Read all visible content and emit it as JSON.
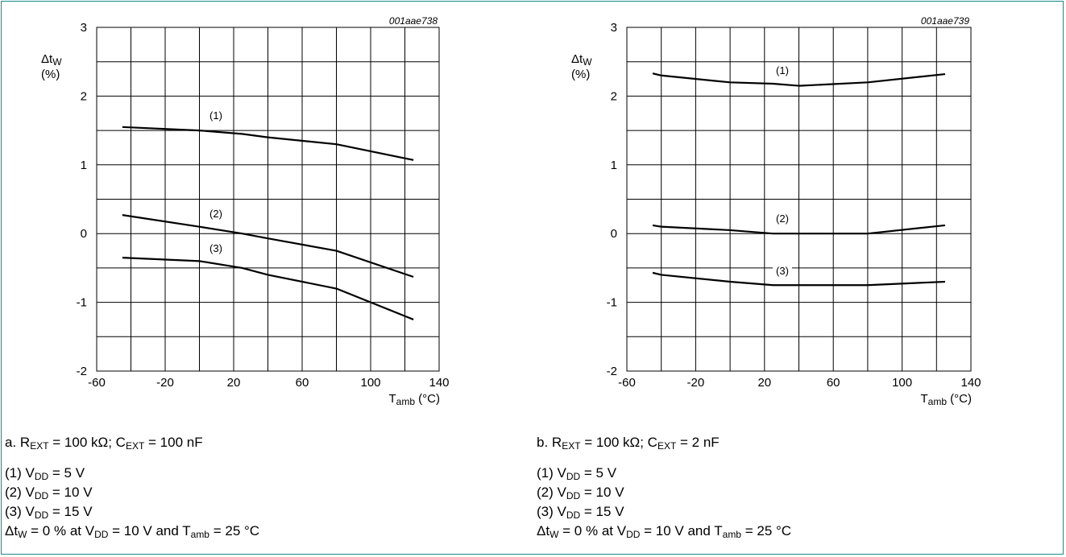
{
  "chart_data": [
    {
      "type": "line",
      "figure_id": "001aae738",
      "ylabel_main": "Δt",
      "ylabel_sub": "W",
      "ylabel_unit": "(%)",
      "xlabel_main": "T",
      "xlabel_sub": "amb",
      "xlabel_unit": " (°C)",
      "xlim": [
        -60,
        140
      ],
      "ylim": [
        -2,
        3
      ],
      "xticks": [
        -60,
        -20,
        20,
        60,
        100,
        140
      ],
      "yticks": [
        -2,
        -1,
        0,
        1,
        2,
        3
      ],
      "grid": true,
      "series": [
        {
          "name": "(1)",
          "x": [
            -45,
            0,
            25,
            40,
            80,
            125
          ],
          "y": [
            1.55,
            1.5,
            1.45,
            1.4,
            1.3,
            1.07
          ]
        },
        {
          "name": "(2)",
          "x": [
            -45,
            0,
            25,
            40,
            80,
            125
          ],
          "y": [
            0.27,
            0.1,
            0.0,
            -0.07,
            -0.25,
            -0.63
          ]
        },
        {
          "name": "(3)",
          "x": [
            -45,
            0,
            25,
            40,
            80,
            125
          ],
          "y": [
            -0.35,
            -0.4,
            -0.5,
            -0.6,
            -0.8,
            -1.25
          ]
        }
      ]
    },
    {
      "type": "line",
      "figure_id": "001aae739",
      "ylabel_main": "Δt",
      "ylabel_sub": "W",
      "ylabel_unit": "(%)",
      "xlabel_main": "T",
      "xlabel_sub": "amb",
      "xlabel_unit": " (°C)",
      "xlim": [
        -60,
        140
      ],
      "ylim": [
        -2,
        3
      ],
      "xticks": [
        -60,
        -20,
        20,
        60,
        100,
        140
      ],
      "yticks": [
        -2,
        -1,
        0,
        1,
        2,
        3
      ],
      "grid": true,
      "series": [
        {
          "name": "(1)",
          "x": [
            -45,
            -40,
            0,
            25,
            40,
            80,
            125
          ],
          "y": [
            2.33,
            2.3,
            2.2,
            2.18,
            2.15,
            2.2,
            2.32
          ]
        },
        {
          "name": "(2)",
          "x": [
            -45,
            -40,
            0,
            25,
            40,
            80,
            125
          ],
          "y": [
            0.12,
            0.1,
            0.05,
            0.0,
            0.0,
            0.0,
            0.12
          ]
        },
        {
          "name": "(3)",
          "x": [
            -45,
            -40,
            0,
            25,
            40,
            80,
            125
          ],
          "y": [
            -0.57,
            -0.6,
            -0.7,
            -0.75,
            -0.75,
            -0.75,
            -0.7
          ]
        }
      ]
    }
  ],
  "captions": {
    "a": {
      "cond_prefix": "a. R",
      "cond_rsub": "EXT",
      "cond_rval": " = 100 kΩ; C",
      "cond_csub": "EXT",
      "cond_cval": " = 100 nF"
    },
    "b": {
      "cond_prefix": "b. R",
      "cond_rsub": "EXT",
      "cond_rval": " = 100 kΩ; C",
      "cond_csub": "EXT",
      "cond_cval": " = 2 nF"
    },
    "vdd": [
      {
        "pre": "(1) V",
        "sub": "DD",
        "post": " = 5 V"
      },
      {
        "pre": "(2) V",
        "sub": "DD",
        "post": " = 10 V"
      },
      {
        "pre": "(3) V",
        "sub": "DD",
        "post": " = 15 V"
      }
    ],
    "note": {
      "p1": "Δt",
      "s1": "W",
      "p2": " = 0 % at V",
      "s2": "DD",
      "p3": " = 10 V and T",
      "s3": "amb",
      "p4": " = 25 °C"
    }
  }
}
